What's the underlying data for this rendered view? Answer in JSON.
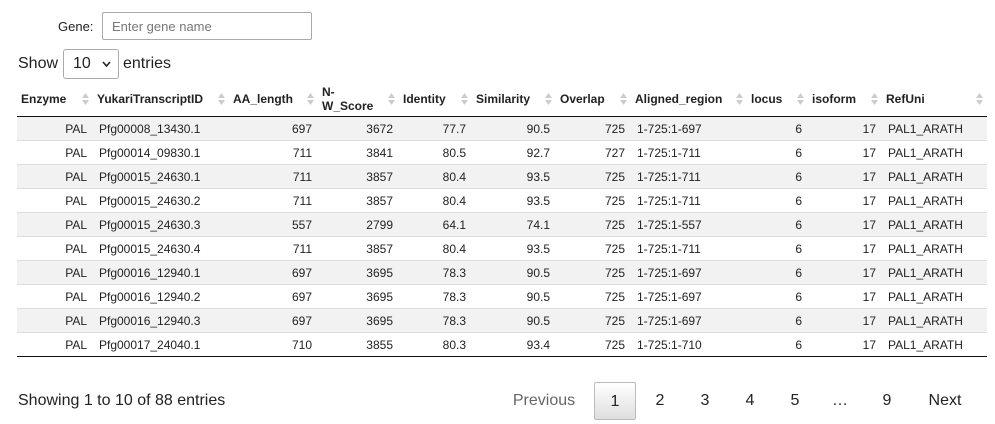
{
  "filter": {
    "label": "Gene:",
    "placeholder": "Enter gene name"
  },
  "length_menu": {
    "prefix": "Show",
    "selected": "10",
    "suffix": "entries"
  },
  "columns": [
    "Enzyme",
    "YukariTranscriptID",
    "AA_length",
    "N-\nW_Score",
    "Identity",
    "Similarity",
    "Overlap",
    "Aligned_region",
    "locus",
    "isoform",
    "RefUni"
  ],
  "rows": [
    [
      "PAL",
      "Pfg00008_13430.1",
      "697",
      "3672",
      "77.7",
      "90.5",
      "725",
      "1-725:1-697",
      "6",
      "17",
      "PAL1_ARATH"
    ],
    [
      "PAL",
      "Pfg00014_09830.1",
      "711",
      "3841",
      "80.5",
      "92.7",
      "727",
      "1-725:1-711",
      "6",
      "17",
      "PAL1_ARATH"
    ],
    [
      "PAL",
      "Pfg00015_24630.1",
      "711",
      "3857",
      "80.4",
      "93.5",
      "725",
      "1-725:1-711",
      "6",
      "17",
      "PAL1_ARATH"
    ],
    [
      "PAL",
      "Pfg00015_24630.2",
      "711",
      "3857",
      "80.4",
      "93.5",
      "725",
      "1-725:1-711",
      "6",
      "17",
      "PAL1_ARATH"
    ],
    [
      "PAL",
      "Pfg00015_24630.3",
      "557",
      "2799",
      "64.1",
      "74.1",
      "725",
      "1-725:1-557",
      "6",
      "17",
      "PAL1_ARATH"
    ],
    [
      "PAL",
      "Pfg00015_24630.4",
      "711",
      "3857",
      "80.4",
      "93.5",
      "725",
      "1-725:1-711",
      "6",
      "17",
      "PAL1_ARATH"
    ],
    [
      "PAL",
      "Pfg00016_12940.1",
      "697",
      "3695",
      "78.3",
      "90.5",
      "725",
      "1-725:1-697",
      "6",
      "17",
      "PAL1_ARATH"
    ],
    [
      "PAL",
      "Pfg00016_12940.2",
      "697",
      "3695",
      "78.3",
      "90.5",
      "725",
      "1-725:1-697",
      "6",
      "17",
      "PAL1_ARATH"
    ],
    [
      "PAL",
      "Pfg00016_12940.3",
      "697",
      "3695",
      "78.3",
      "90.5",
      "725",
      "1-725:1-697",
      "6",
      "17",
      "PAL1_ARATH"
    ],
    [
      "PAL",
      "Pfg00017_24040.1",
      "710",
      "3855",
      "80.3",
      "93.4",
      "725",
      "1-725:1-710",
      "6",
      "17",
      "PAL1_ARATH"
    ]
  ],
  "info": "Showing 1 to 10 of 88 entries",
  "pagination": {
    "previous": "Previous",
    "pages": [
      "1",
      "2",
      "3",
      "4",
      "5",
      "…",
      "9"
    ],
    "current": "1",
    "next": "Next"
  }
}
